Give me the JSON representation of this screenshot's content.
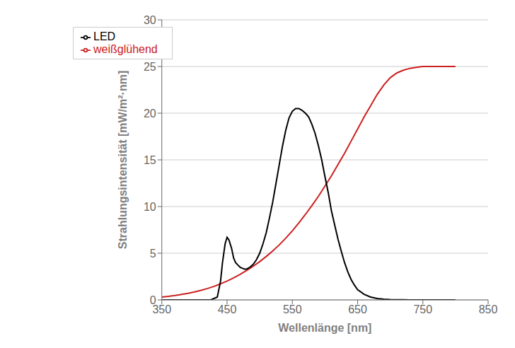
{
  "chart_data": {
    "type": "line",
    "xlabel": "Wellenlänge [nm]",
    "ylabel": "Strahlungsintensität [mW/m²·nm]",
    "xlim": [
      350,
      850
    ],
    "ylim": [
      0,
      30
    ],
    "xticks": [
      350,
      450,
      550,
      650,
      750,
      850
    ],
    "yticks": [
      0,
      5,
      10,
      15,
      20,
      25,
      30
    ],
    "grid": true,
    "legend": "upper left",
    "series": [
      {
        "name": "weißglühend",
        "color": "#cc2020",
        "x": [
          350,
          360,
          370,
          380,
          390,
          400,
          410,
          420,
          430,
          440,
          450,
          460,
          470,
          480,
          490,
          500,
          510,
          520,
          530,
          540,
          550,
          560,
          570,
          580,
          590,
          600,
          610,
          620,
          630,
          640,
          650,
          660,
          670,
          680,
          690,
          700,
          710,
          720,
          730,
          740,
          750,
          760,
          770,
          780,
          790,
          800
        ],
        "values": [
          0.3,
          0.38,
          0.47,
          0.58,
          0.7,
          0.85,
          1.02,
          1.22,
          1.45,
          1.72,
          2.02,
          2.36,
          2.74,
          3.15,
          3.6,
          4.1,
          4.65,
          5.25,
          5.9,
          6.62,
          7.4,
          8.25,
          9.15,
          10.1,
          11.1,
          12.2,
          13.3,
          14.5,
          15.7,
          17.0,
          18.3,
          19.6,
          20.8,
          22.0,
          23.0,
          23.8,
          24.3,
          24.6,
          24.8,
          24.9,
          25.0,
          25.0,
          25.0,
          25.0,
          25.0,
          25.0
        ]
      },
      {
        "name": "LED",
        "color": "#000000",
        "x": [
          350,
          390,
          410,
          425,
          435,
          440,
          443,
          447,
          450,
          453,
          457,
          460,
          463,
          467,
          470,
          473,
          477,
          480,
          485,
          490,
          495,
          500,
          505,
          510,
          515,
          520,
          525,
          530,
          535,
          540,
          545,
          550,
          555,
          560,
          565,
          570,
          575,
          580,
          585,
          590,
          595,
          600,
          605,
          610,
          615,
          620,
          625,
          630,
          635,
          640,
          645,
          650,
          660,
          670,
          680,
          690,
          700,
          710,
          720,
          730,
          740,
          750,
          760,
          770,
          780,
          790,
          800
        ],
        "values": [
          0,
          0,
          0,
          0,
          0.3,
          2.0,
          4.0,
          6.0,
          6.7,
          6.4,
          5.5,
          4.5,
          4.0,
          3.7,
          3.5,
          3.4,
          3.3,
          3.3,
          3.5,
          3.8,
          4.3,
          5.0,
          6.0,
          7.2,
          8.8,
          10.5,
          12.5,
          14.5,
          16.5,
          18.2,
          19.5,
          20.2,
          20.5,
          20.5,
          20.3,
          20.0,
          19.6,
          18.8,
          17.8,
          16.5,
          15.0,
          13.2,
          11.5,
          9.5,
          8.0,
          6.5,
          5.2,
          4.0,
          3.0,
          2.2,
          1.6,
          1.1,
          0.6,
          0.3,
          0.15,
          0.07,
          0.03,
          0.02,
          0.01,
          0.0,
          0.0,
          0.0,
          0.0,
          0.0,
          0.0,
          0.0,
          0.0
        ]
      }
    ]
  }
}
